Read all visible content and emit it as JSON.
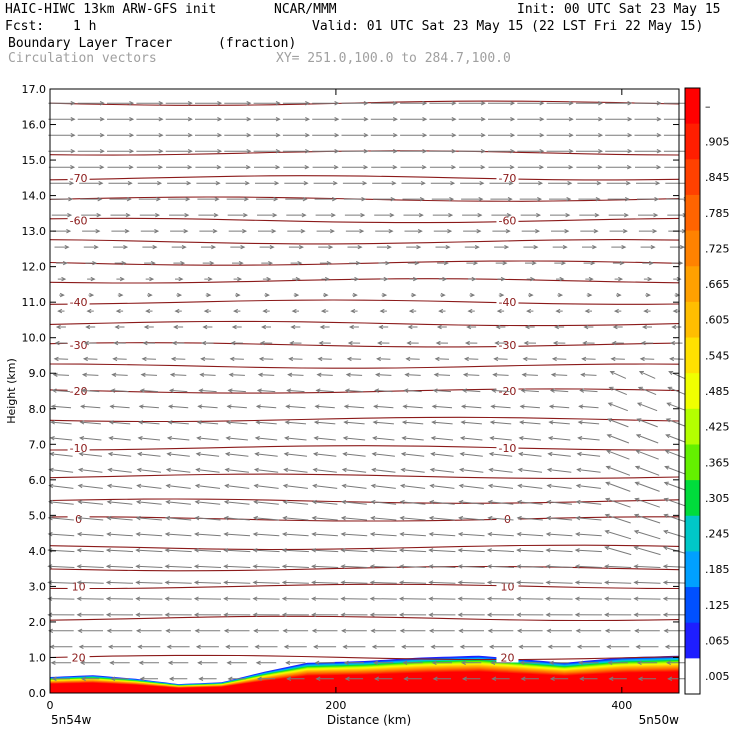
{
  "header": {
    "model": "HAIC-HIWC 13km ARW-GFS init",
    "org": "NCAR/MMM",
    "init": "Init: 00 UTC Sat 23 May 15",
    "fcst_label": "Fcst:",
    "fcst_value": "1 h",
    "valid": "Valid: 01 UTC Sat 23 May 15 (22 LST Fri 22 May 15)",
    "field": "Boundary Layer Tracer",
    "field_units": "(fraction)",
    "vectors": "Circulation vectors",
    "xy": "XY= 251.0,100.0 to 284.7,100.0"
  },
  "chart_data": {
    "type": "heatmap",
    "title": "Boundary Layer Tracer",
    "xlabel": "Distance (km)",
    "ylabel": "Height (km)",
    "xlim": [
      0,
      440
    ],
    "ylim": [
      0,
      17
    ],
    "x_ticks": [
      "0",
      "200",
      "400"
    ],
    "x_ends": [
      "5n54w",
      "5n50w"
    ],
    "y_ticks": [
      "0.0",
      "1.0",
      "2.0",
      "3.0",
      "4.0",
      "5.0",
      "6.0",
      "7.0",
      "8.0",
      "9.0",
      "10.0",
      "11.0",
      "12.0",
      "13.0",
      "14.0",
      "15.0",
      "16.0",
      "17.0"
    ],
    "colorbar": {
      "labels": [
        "–",
        ".905",
        ".845",
        ".785",
        ".725",
        ".665",
        ".605",
        ".545",
        ".485",
        ".425",
        ".365",
        ".305",
        ".245",
        ".185",
        ".125",
        ".065",
        ".005"
      ],
      "colors": [
        "#ff0000",
        "#ff1e00",
        "#ff4100",
        "#ff6400",
        "#ff8200",
        "#ffa000",
        "#ffbe00",
        "#ffe100",
        "#f0ff00",
        "#b4ff00",
        "#64f000",
        "#00dc3c",
        "#00c8c8",
        "#00a0ff",
        "#0050ff",
        "#1e1eff",
        "#ffffff"
      ]
    },
    "tracer_layer": [
      {
        "x": 0,
        "top": 0.45
      },
      {
        "x": 30,
        "top": 0.5
      },
      {
        "x": 60,
        "top": 0.4
      },
      {
        "x": 90,
        "top": 0.25
      },
      {
        "x": 120,
        "top": 0.3
      },
      {
        "x": 150,
        "top": 0.6
      },
      {
        "x": 180,
        "top": 0.85
      },
      {
        "x": 220,
        "top": 0.9
      },
      {
        "x": 260,
        "top": 1.0
      },
      {
        "x": 300,
        "top": 1.05
      },
      {
        "x": 330,
        "top": 0.95
      },
      {
        "x": 360,
        "top": 0.85
      },
      {
        "x": 400,
        "top": 1.0
      },
      {
        "x": 440,
        "top": 1.05
      }
    ],
    "isotherms": [
      {
        "h": 16.6
      },
      {
        "h": 15.2
      },
      {
        "h": 14.5,
        "label": "-70"
      },
      {
        "h": 13.9
      },
      {
        "h": 13.3,
        "label": "-60"
      },
      {
        "h": 12.7
      },
      {
        "h": 12.1
      },
      {
        "h": 11.6
      },
      {
        "h": 11.0,
        "label": "-40"
      },
      {
        "h": 10.4
      },
      {
        "h": 9.8,
        "label": "-30"
      },
      {
        "h": 9.2
      },
      {
        "h": 8.5,
        "label": "-20"
      },
      {
        "h": 7.7
      },
      {
        "h": 6.9,
        "label": "-10"
      },
      {
        "h": 6.1
      },
      {
        "h": 5.4
      },
      {
        "h": 4.9,
        "label": "0"
      },
      {
        "h": 4.1
      },
      {
        "h": 3.5
      },
      {
        "h": 3.0,
        "label": "10"
      },
      {
        "h": 2.1
      },
      {
        "h": 1.0,
        "label": "20"
      }
    ],
    "wind_profile": [
      {
        "h": 0.5,
        "u": -0.6,
        "w": 0.0
      },
      {
        "h": 2.0,
        "u": -1.0,
        "w": 0.0
      },
      {
        "h": 4.0,
        "u": -1.0,
        "w": 0.05
      },
      {
        "h": 6.0,
        "u": -0.9,
        "w": 0.1
      },
      {
        "h": 8.0,
        "u": -0.7,
        "w": 0.05
      },
      {
        "h": 10.0,
        "u": -0.3,
        "w": 0.0
      },
      {
        "h": 11.5,
        "u": 0.1,
        "w": 0.0
      },
      {
        "h": 13.0,
        "u": 0.6,
        "w": 0.0
      },
      {
        "h": 15.0,
        "u": 1.0,
        "w": 0.0
      },
      {
        "h": 17.0,
        "u": 1.0,
        "w": 0.0
      }
    ]
  }
}
